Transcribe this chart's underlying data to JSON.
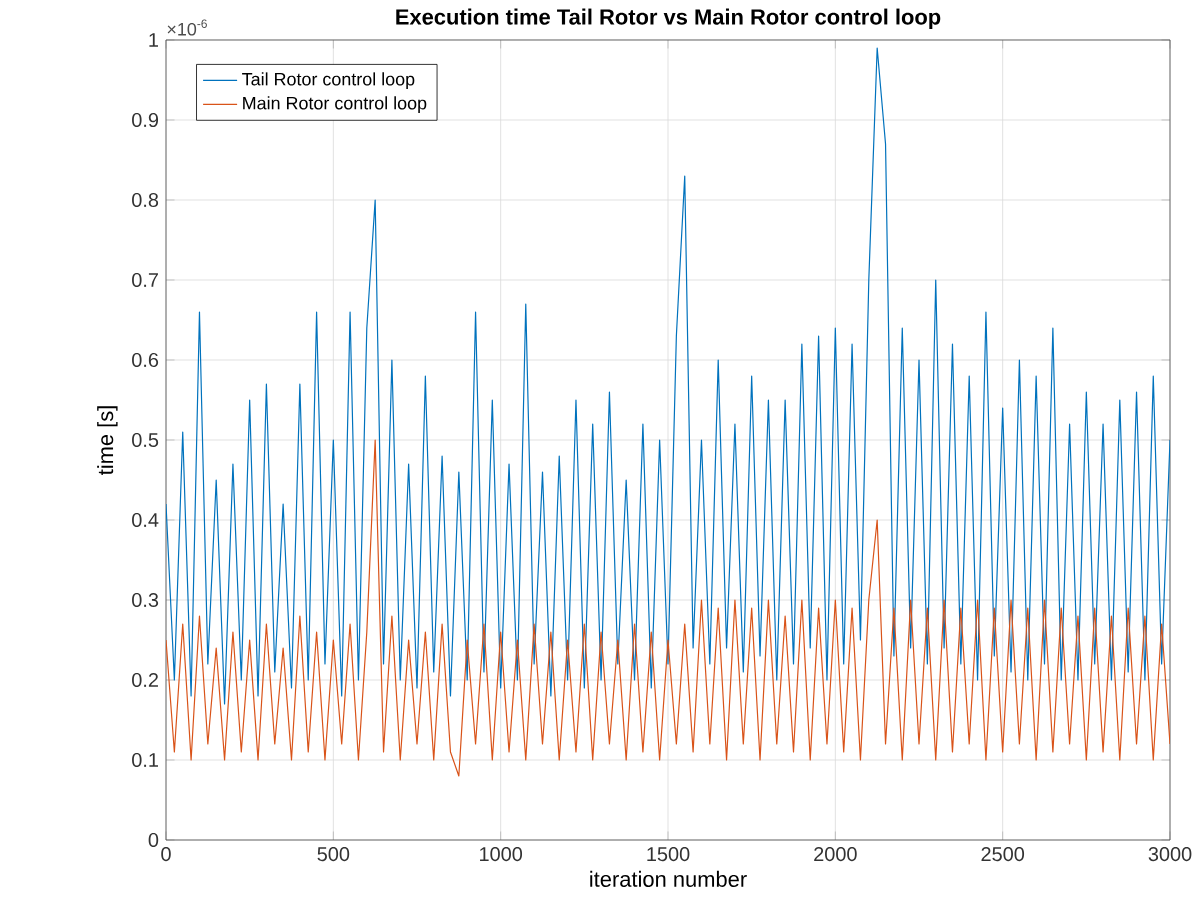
{
  "chart_data": {
    "type": "line",
    "title": "Execution time Tail Rotor vs Main Rotor control loop",
    "xlabel": "iteration number",
    "ylabel": "time [s]",
    "annotations": [
      "×10$^{-6}$"
    ],
    "x": [
      0,
      25,
      50,
      75,
      100,
      125,
      150,
      175,
      200,
      225,
      250,
      275,
      300,
      325,
      350,
      375,
      400,
      425,
      450,
      475,
      500,
      525,
      550,
      575,
      600,
      625,
      650,
      675,
      700,
      725,
      750,
      775,
      800,
      825,
      850,
      875,
      900,
      925,
      950,
      975,
      1000,
      1025,
      1050,
      1075,
      1100,
      1125,
      1150,
      1175,
      1200,
      1225,
      1250,
      1275,
      1300,
      1325,
      1350,
      1375,
      1400,
      1425,
      1450,
      1475,
      1500,
      1525,
      1550,
      1575,
      1600,
      1625,
      1650,
      1675,
      1700,
      1725,
      1750,
      1775,
      1800,
      1825,
      1850,
      1875,
      1900,
      1925,
      1950,
      1975,
      2000,
      2025,
      2050,
      2075,
      2100,
      2125,
      2150,
      2175,
      2200,
      2225,
      2250,
      2275,
      2300,
      2325,
      2350,
      2375,
      2400,
      2425,
      2450,
      2475,
      2500,
      2525,
      2550,
      2575,
      2600,
      2625,
      2650,
      2675,
      2700,
      2725,
      2750,
      2775,
      2800,
      2825,
      2850,
      2875,
      2900,
      2925,
      2950,
      2975,
      3000
    ],
    "series": [
      {
        "name": "Tail Rotor control loop",
        "color": "#0072bd",
        "values": [
          0.42,
          0.2,
          0.51,
          0.18,
          0.66,
          0.22,
          0.45,
          0.17,
          0.47,
          0.2,
          0.55,
          0.18,
          0.57,
          0.21,
          0.42,
          0.19,
          0.57,
          0.2,
          0.66,
          0.22,
          0.5,
          0.18,
          0.66,
          0.2,
          0.64,
          0.8,
          0.22,
          0.6,
          0.2,
          0.47,
          0.19,
          0.58,
          0.21,
          0.48,
          0.18,
          0.46,
          0.2,
          0.66,
          0.21,
          0.55,
          0.19,
          0.47,
          0.2,
          0.67,
          0.22,
          0.46,
          0.18,
          0.48,
          0.2,
          0.55,
          0.19,
          0.52,
          0.2,
          0.56,
          0.22,
          0.45,
          0.2,
          0.52,
          0.19,
          0.5,
          0.22,
          0.63,
          0.83,
          0.24,
          0.5,
          0.22,
          0.6,
          0.24,
          0.52,
          0.21,
          0.58,
          0.23,
          0.55,
          0.2,
          0.55,
          0.22,
          0.62,
          0.24,
          0.63,
          0.2,
          0.64,
          0.22,
          0.62,
          0.25,
          0.7,
          0.99,
          0.87,
          0.23,
          0.64,
          0.24,
          0.6,
          0.22,
          0.7,
          0.24,
          0.62,
          0.22,
          0.58,
          0.2,
          0.66,
          0.23,
          0.54,
          0.21,
          0.6,
          0.2,
          0.58,
          0.22,
          0.64,
          0.2,
          0.52,
          0.2,
          0.56,
          0.22,
          0.52,
          0.2,
          0.55,
          0.21,
          0.56,
          0.2,
          0.58,
          0.22,
          0.5
        ]
      },
      {
        "name": "Main Rotor control loop",
        "color": "#d95319",
        "values": [
          0.25,
          0.11,
          0.27,
          0.1,
          0.28,
          0.12,
          0.24,
          0.1,
          0.26,
          0.11,
          0.25,
          0.1,
          0.27,
          0.12,
          0.24,
          0.1,
          0.28,
          0.11,
          0.26,
          0.1,
          0.25,
          0.12,
          0.27,
          0.1,
          0.26,
          0.5,
          0.11,
          0.28,
          0.1,
          0.25,
          0.12,
          0.26,
          0.1,
          0.27,
          0.11,
          0.08,
          0.25,
          0.12,
          0.27,
          0.1,
          0.26,
          0.11,
          0.25,
          0.1,
          0.27,
          0.12,
          0.26,
          0.1,
          0.25,
          0.11,
          0.27,
          0.1,
          0.26,
          0.12,
          0.25,
          0.1,
          0.27,
          0.11,
          0.26,
          0.1,
          0.25,
          0.12,
          0.27,
          0.11,
          0.3,
          0.12,
          0.29,
          0.1,
          0.3,
          0.12,
          0.29,
          0.1,
          0.3,
          0.12,
          0.28,
          0.11,
          0.3,
          0.1,
          0.29,
          0.12,
          0.3,
          0.11,
          0.29,
          0.1,
          0.3,
          0.4,
          0.12,
          0.29,
          0.1,
          0.3,
          0.12,
          0.29,
          0.1,
          0.3,
          0.11,
          0.29,
          0.12,
          0.3,
          0.1,
          0.29,
          0.11,
          0.3,
          0.12,
          0.29,
          0.1,
          0.3,
          0.11,
          0.29,
          0.12,
          0.28,
          0.1,
          0.29,
          0.11,
          0.28,
          0.1,
          0.29,
          0.12,
          0.28,
          0.1,
          0.27,
          0.12
        ]
      }
    ],
    "xlim": [
      0,
      3000
    ],
    "ylim": [
      0,
      1
    ],
    "xticks": [
      0,
      500,
      1000,
      1500,
      2000,
      2500,
      3000
    ],
    "yticks": [
      0,
      0.1,
      0.2,
      0.3,
      0.4,
      0.5,
      0.6,
      0.7,
      0.8,
      0.9,
      1
    ],
    "grid": true,
    "legend": "top left"
  }
}
